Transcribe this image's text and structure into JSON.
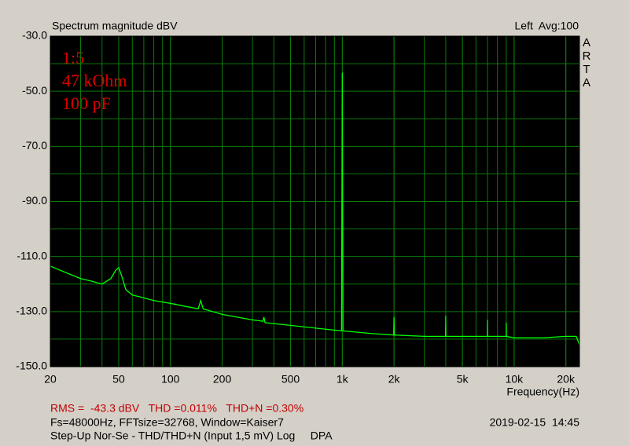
{
  "chart_data": {
    "type": "line",
    "title": "Spectrum magnitude dBV",
    "channel_info": "Left  Avg:100",
    "brand": "ARTA",
    "x_label": "Frequency(Hz)",
    "annotations": [
      "1:5",
      "47 kOhm",
      "100 pF"
    ],
    "log_x": true,
    "grid": true,
    "xlim": [
      20,
      24000
    ],
    "ylim": [
      -150,
      -30
    ],
    "xticks": [
      20,
      50,
      100,
      200,
      500,
      {
        "value": 1000,
        "label": "1k"
      },
      {
        "value": 2000,
        "label": "2k"
      },
      {
        "value": 5000,
        "label": "5k"
      },
      {
        "value": 10000,
        "label": "10k"
      },
      {
        "value": 20000,
        "label": "20k"
      }
    ],
    "x_grid": [
      20,
      30,
      40,
      50,
      60,
      70,
      80,
      90,
      100,
      200,
      300,
      400,
      500,
      600,
      700,
      800,
      900,
      1000,
      2000,
      3000,
      4000,
      5000,
      6000,
      7000,
      8000,
      9000,
      10000,
      20000
    ],
    "yticks": [
      {
        "value": -30,
        "label": "-30.0"
      },
      {
        "value": -50,
        "label": "-50.0"
      },
      {
        "value": -70,
        "label": "-70.0"
      },
      {
        "value": -90,
        "label": "-90.0"
      },
      {
        "value": -110,
        "label": "-110.0"
      },
      {
        "value": -130,
        "label": "-130.0"
      },
      {
        "value": -150,
        "label": "-150.0"
      }
    ],
    "y_grid": [
      -40,
      -60,
      -80,
      -100,
      -120,
      -140
    ],
    "series": [
      {
        "name": "Left",
        "color": "#00ff00",
        "x": [
          20,
          25,
          30,
          35,
          40,
          45,
          48,
          50,
          52,
          55,
          60,
          70,
          80,
          100,
          120,
          145,
          150,
          155,
          200,
          300,
          345,
          350,
          355,
          500,
          700,
          990,
          1000,
          1010,
          1500,
          1990,
          2000,
          2010,
          3000,
          3990,
          4000,
          4010,
          5000,
          6990,
          7000,
          7010,
          8000,
          8990,
          9000,
          9010,
          10000,
          15000,
          20000,
          23000,
          24000
        ],
        "values": [
          -113.5,
          -116,
          -118,
          -119,
          -120,
          -118,
          -115,
          -114,
          -117,
          -122,
          -124,
          -125,
          -126,
          -127,
          -128,
          -129,
          -126,
          -129,
          -131,
          -133,
          -133.5,
          -132,
          -134,
          -135,
          -136,
          -137,
          -43.3,
          -137,
          -138,
          -138.5,
          -132,
          -138.5,
          -139,
          -139,
          -131.5,
          -139,
          -139,
          -139,
          -133,
          -139,
          -139,
          -139,
          -134,
          -139,
          -139.5,
          -139.5,
          -139,
          -139,
          -142
        ]
      }
    ],
    "footer": {
      "measurements": "RMS =  -43.3 dBV   THD =0.011%   THD+N =0.30%",
      "settings": "Fs=48000Hz, FFTsize=32768, Window=Kaiser7",
      "timestamp": "2019-02-15  14:45",
      "description": "Step-Up Nor-Se - THD/THD+N (Input 1,5 mV) Log     DPA"
    }
  }
}
